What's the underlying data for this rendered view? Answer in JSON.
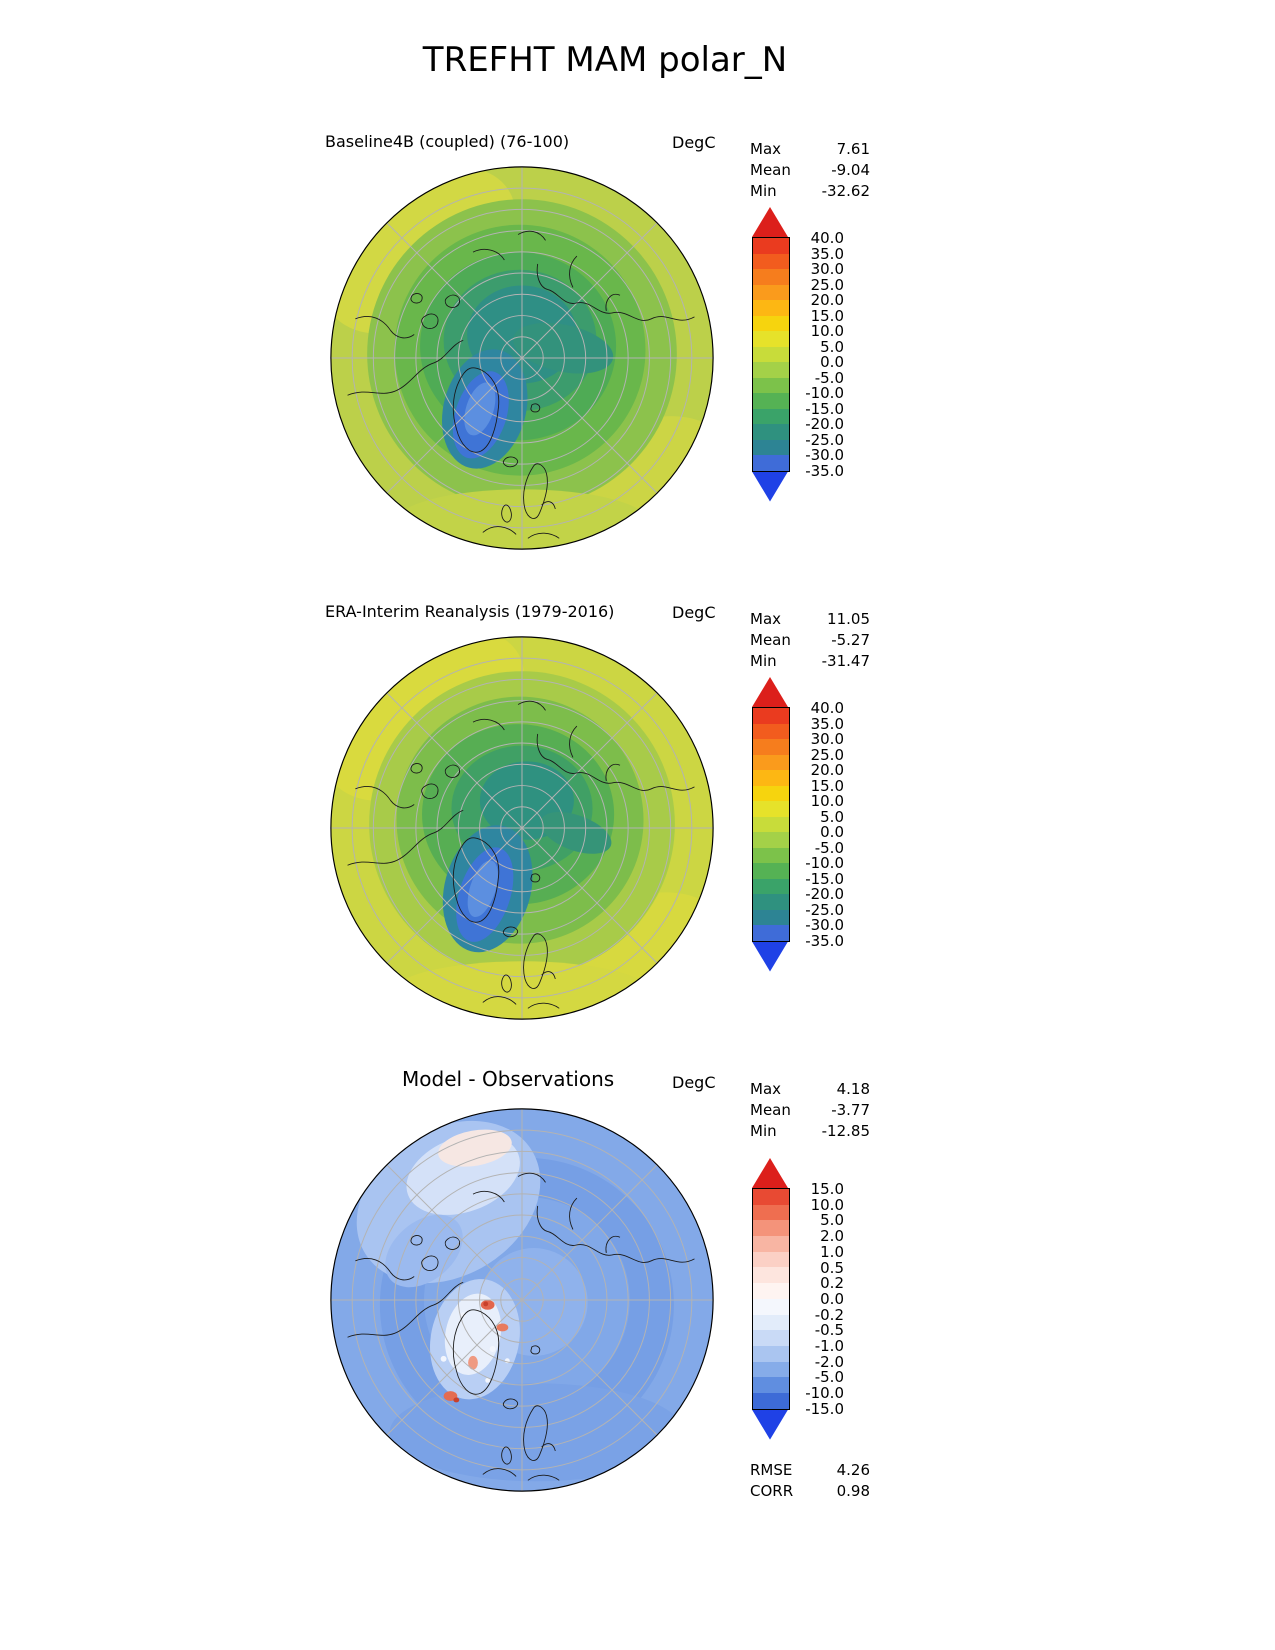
{
  "title": "TREFHT MAM polar_N",
  "panels": [
    {
      "title": "Baseline4B (coupled) (76-100)",
      "units": "DegC",
      "stats": [
        {
          "label": "Max",
          "value": "7.61"
        },
        {
          "label": "Mean",
          "value": "-9.04"
        },
        {
          "label": "Min",
          "value": "-32.62"
        }
      ],
      "colorbar": {
        "labels": [
          "40.0",
          "35.0",
          "30.0",
          "25.0",
          "20.0",
          "15.0",
          "10.0",
          "5.0",
          "0.0",
          "-5.0",
          "-10.0",
          "-15.0",
          "-20.0",
          "-25.0",
          "-30.0",
          "-35.0"
        ],
        "colors": [
          "#dc1f1b",
          "#ea3b1f",
          "#f25c1e",
          "#f67d1d",
          "#fa9b1c",
          "#fdb713",
          "#f6d40e",
          "#e6e22a",
          "#c8dc3a",
          "#a4d148",
          "#7cc24a",
          "#55b254",
          "#3aa369",
          "#2f917f",
          "#2d8494",
          "#3f6cd8",
          "#1f41e6"
        ]
      }
    },
    {
      "title": "ERA-Interim Reanalysis (1979-2016)",
      "units": "DegC",
      "stats": [
        {
          "label": "Max",
          "value": "11.05"
        },
        {
          "label": "Mean",
          "value": "-5.27"
        },
        {
          "label": "Min",
          "value": "-31.47"
        }
      ],
      "colorbar": {
        "labels": [
          "40.0",
          "35.0",
          "30.0",
          "25.0",
          "20.0",
          "15.0",
          "10.0",
          "5.0",
          "0.0",
          "-5.0",
          "-10.0",
          "-15.0",
          "-20.0",
          "-25.0",
          "-30.0",
          "-35.0"
        ],
        "colors": [
          "#dc1f1b",
          "#ea3b1f",
          "#f25c1e",
          "#f67d1d",
          "#fa9b1c",
          "#fdb713",
          "#f6d40e",
          "#e6e22a",
          "#c8dc3a",
          "#a4d148",
          "#7cc24a",
          "#55b254",
          "#3aa369",
          "#2f917f",
          "#2d8494",
          "#3f6cd8",
          "#1f41e6"
        ]
      }
    },
    {
      "title": "Model - Observations",
      "units": "DegC",
      "stats": [
        {
          "label": "Max",
          "value": "4.18"
        },
        {
          "label": "Mean",
          "value": "-3.77"
        },
        {
          "label": "Min",
          "value": "-12.85"
        }
      ],
      "extra_stats": [
        {
          "label": "RMSE",
          "value": "4.26"
        },
        {
          "label": "CORR",
          "value": "0.98"
        }
      ],
      "colorbar": {
        "labels": [
          "15.0",
          "10.0",
          "5.0",
          "2.0",
          "1.0",
          "0.5",
          "0.2",
          "0.0",
          "-0.2",
          "-0.5",
          "-1.0",
          "-2.0",
          "-5.0",
          "-10.0",
          "-15.0"
        ],
        "colors": [
          "#dc1f1b",
          "#e84a33",
          "#ef6e50",
          "#f4937a",
          "#f8b5a3",
          "#fbd0c5",
          "#fde5de",
          "#fef4f1",
          "#f4f7fd",
          "#e2ecfa",
          "#c9daf6",
          "#aac5f0",
          "#86ace9",
          "#608ee0",
          "#3d6bd7",
          "#1f41e6"
        ]
      }
    }
  ],
  "chart_data": [
    {
      "type": "heatmap",
      "subtype": "polar-stereographic-contour-map-north",
      "title": "Baseline4B (coupled) (76-100)",
      "units": "DegC",
      "stats": {
        "max": 7.61,
        "mean": -9.04,
        "min": -32.62
      },
      "contour_levels": [
        -35,
        -30,
        -25,
        -20,
        -15,
        -10,
        -5,
        0,
        5,
        10,
        15,
        20,
        25,
        30,
        35,
        40
      ],
      "legend_position": "right",
      "grid": "polar graticule on"
    },
    {
      "type": "heatmap",
      "subtype": "polar-stereographic-contour-map-north",
      "title": "ERA-Interim Reanalysis (1979-2016)",
      "units": "DegC",
      "stats": {
        "max": 11.05,
        "mean": -5.27,
        "min": -31.47
      },
      "contour_levels": [
        -35,
        -30,
        -25,
        -20,
        -15,
        -10,
        -5,
        0,
        5,
        10,
        15,
        20,
        25,
        30,
        35,
        40
      ],
      "legend_position": "right",
      "grid": "polar graticule on"
    },
    {
      "type": "heatmap",
      "subtype": "polar-stereographic-contour-map-north-difference",
      "title": "Model - Observations",
      "units": "DegC",
      "stats": {
        "max": 4.18,
        "mean": -3.77,
        "min": -12.85,
        "rmse": 4.26,
        "corr": 0.98
      },
      "contour_levels": [
        -15,
        -10,
        -5,
        -2,
        -1,
        -0.5,
        -0.2,
        0,
        0.2,
        0.5,
        1,
        2,
        5,
        10,
        15
      ],
      "legend_position": "right",
      "grid": "polar graticule on"
    }
  ]
}
